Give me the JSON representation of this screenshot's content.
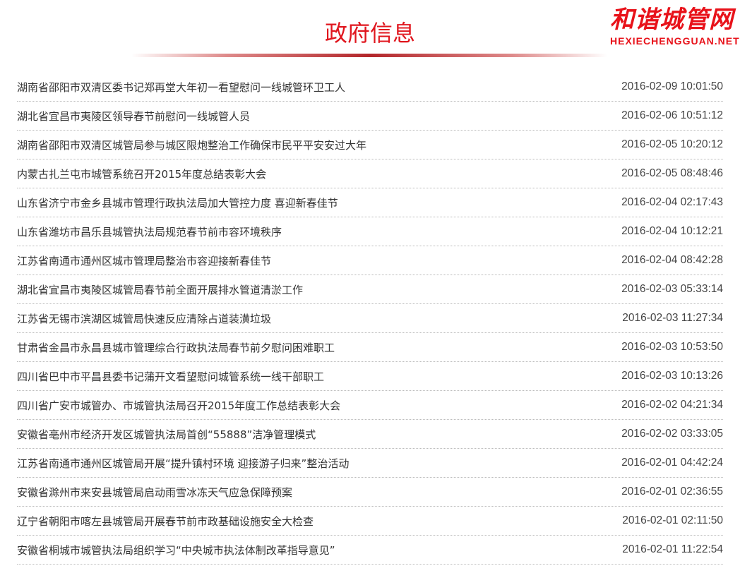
{
  "page": {
    "title": "政府信息"
  },
  "items": [
    {
      "title": "湖南省邵阳市双清区委书记郑再堂大年初一看望慰问一线城管环卫工人",
      "date": "2016-02-09 10:01:50"
    },
    {
      "title": "湖北省宜昌市夷陵区领导春节前慰问一线城管人员",
      "date": "2016-02-06 10:51:12"
    },
    {
      "title": "湖南省邵阳市双清区城管局参与城区限炮整治工作确保市民平平安安过大年",
      "date": "2016-02-05 10:20:12"
    },
    {
      "title": "内蒙古扎兰屯市城管系统召开2015年度总结表彰大会",
      "date": "2016-02-05 08:48:46"
    },
    {
      "title": "山东省济宁市金乡县城市管理行政执法局加大管控力度 喜迎新春佳节",
      "date": "2016-02-04 02:17:43"
    },
    {
      "title": "山东省潍坊市昌乐县城管执法局规范春节前市容环境秩序",
      "date": "2016-02-04 10:12:21"
    },
    {
      "title": "江苏省南通市通州区城市管理局整治市容迎接新春佳节",
      "date": "2016-02-04 08:42:28"
    },
    {
      "title": "湖北省宜昌市夷陵区城管局春节前全面开展排水管道清淤工作",
      "date": "2016-02-03 05:33:14"
    },
    {
      "title": "江苏省无锡市滨湖区城管局快速反应清除占道装潢垃圾",
      "date": "2016-02-03 11:27:34"
    },
    {
      "title": "甘肃省金昌市永昌县城市管理综合行政执法局春节前夕慰问困难职工",
      "date": "2016-02-03 10:53:50"
    },
    {
      "title": "四川省巴中市平昌县委书记蒲开文看望慰问城管系统一线干部职工",
      "date": "2016-02-03 10:13:26"
    },
    {
      "title": "四川省广安市城管办、市城管执法局召开2015年度工作总结表彰大会",
      "date": "2016-02-02 04:21:34"
    },
    {
      "title": "安徽省亳州市经济开发区城管执法局首创“55888”洁净管理模式",
      "date": "2016-02-02 03:33:05"
    },
    {
      "title": "江苏省南通市通州区城管局开展“提升镇村环境 迎接游子归来”整治活动",
      "date": "2016-02-01 04:42:24"
    },
    {
      "title": "安徽省滁州市来安县城管局启动雨雪冰冻天气应急保障预案",
      "date": "2016-02-01 02:36:55"
    },
    {
      "title": "辽宁省朝阳市喀左县城管局开展春节前市政基础设施安全大检查",
      "date": "2016-02-01 02:11:50"
    },
    {
      "title": "安徽省桐城市城管执法局组织学习“中央城市执法体制改革指导意见”",
      "date": "2016-02-01 11:22:54"
    }
  ],
  "watermark": {
    "cn": "和谐城管网",
    "en": "HEXIECHENGGUAN.NET"
  },
  "colors": {
    "accent": "#e0161e"
  }
}
